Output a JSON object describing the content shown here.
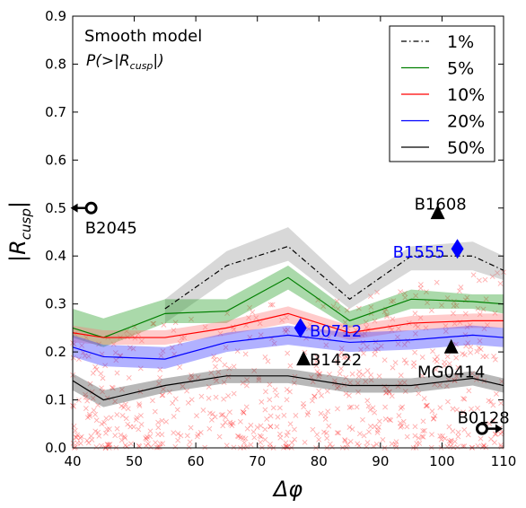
{
  "chart_data": {
    "type": "line",
    "xlabel": "Δφ",
    "ylabel": "|R_cusp|",
    "xlim": [
      40,
      110
    ],
    "ylim": [
      0.0,
      0.9
    ],
    "xticks": [
      "40",
      "50",
      "60",
      "70",
      "80",
      "90",
      "100",
      "110"
    ],
    "yticks": [
      "0.0",
      "0.1",
      "0.2",
      "0.3",
      "0.4",
      "0.5",
      "0.6",
      "0.7",
      "0.8",
      "0.9"
    ],
    "ylabel_main": "|R",
    "ylabel_sub": "cusp",
    "ylabel_end": "|",
    "grid": false,
    "legend_position": "top-right",
    "annotation": {
      "title": "Smooth model",
      "formula_main": "P(>|R",
      "formula_sub": "cusp",
      "formula_end": "|)"
    },
    "x": [
      40,
      45,
      55,
      65,
      75,
      85,
      95,
      105,
      110
    ],
    "series": [
      {
        "name": "1%",
        "color": "#000000",
        "dash": "dashdot",
        "values": [
          null,
          null,
          0.29,
          0.38,
          0.42,
          0.31,
          0.4,
          0.4,
          0.37
        ],
        "band_low": [
          null,
          null,
          0.26,
          0.35,
          0.39,
          0.29,
          0.37,
          0.37,
          0.35
        ],
        "band_high": [
          null,
          null,
          0.31,
          0.41,
          0.46,
          0.34,
          0.42,
          0.43,
          0.4
        ],
        "band_color": "#999999"
      },
      {
        "name": "5%",
        "color": "#007f00",
        "dash": "solid",
        "values": [
          0.25,
          0.23,
          0.28,
          0.285,
          0.355,
          0.265,
          0.31,
          0.305,
          0.3
        ],
        "band_low": [
          0.23,
          0.21,
          0.26,
          0.26,
          0.33,
          0.25,
          0.29,
          0.29,
          0.28
        ],
        "band_high": [
          0.29,
          0.27,
          0.31,
          0.31,
          0.38,
          0.285,
          0.33,
          0.32,
          0.32
        ],
        "band_color": "#1f9a1f"
      },
      {
        "name": "10%",
        "color": "#ff0000",
        "dash": "solid",
        "values": [
          0.24,
          0.23,
          0.23,
          0.25,
          0.28,
          0.24,
          0.26,
          0.265,
          0.265
        ],
        "band_low": [
          0.22,
          0.215,
          0.215,
          0.235,
          0.26,
          0.225,
          0.245,
          0.25,
          0.25
        ],
        "band_high": [
          0.255,
          0.245,
          0.245,
          0.265,
          0.295,
          0.255,
          0.275,
          0.28,
          0.28
        ],
        "band_color": "#ff7777"
      },
      {
        "name": "20%",
        "color": "#0000ff",
        "dash": "solid",
        "values": [
          0.21,
          0.19,
          0.185,
          0.22,
          0.235,
          0.22,
          0.225,
          0.235,
          0.23
        ],
        "band_low": [
          0.19,
          0.17,
          0.165,
          0.2,
          0.215,
          0.2,
          0.205,
          0.215,
          0.21
        ],
        "band_high": [
          0.235,
          0.215,
          0.21,
          0.24,
          0.255,
          0.24,
          0.245,
          0.255,
          0.25
        ],
        "band_color": "#3333ff"
      },
      {
        "name": "50%",
        "color": "#000000",
        "dash": "solid",
        "values": [
          0.14,
          0.1,
          0.13,
          0.15,
          0.15,
          0.13,
          0.13,
          0.145,
          0.13
        ],
        "band_low": [
          0.12,
          0.085,
          0.115,
          0.135,
          0.135,
          0.115,
          0.115,
          0.13,
          0.115
        ],
        "band_high": [
          0.155,
          0.12,
          0.145,
          0.165,
          0.165,
          0.145,
          0.145,
          0.16,
          0.145
        ],
        "band_color": "#444444"
      }
    ],
    "points": [
      {
        "label": "B1608",
        "x": 99.3,
        "y": 0.49,
        "marker": "triangle",
        "color": "#000000",
        "label_x": 95.5,
        "label_y": 0.51
      },
      {
        "label": "B1555",
        "x": 102.5,
        "y": 0.415,
        "marker": "diamond",
        "color": "#0000ff",
        "label_x": 92.0,
        "label_y": 0.41
      },
      {
        "label": "B0712",
        "x": 77.0,
        "y": 0.25,
        "marker": "diamond",
        "color": "#0000ff",
        "label_x": 78.5,
        "label_y": 0.245
      },
      {
        "label": "B1422",
        "x": 77.5,
        "y": 0.185,
        "marker": "triangle",
        "color": "#000000",
        "label_x": 78.5,
        "label_y": 0.185
      },
      {
        "label": "MG0414",
        "x": 101.5,
        "y": 0.21,
        "marker": "triangle",
        "color": "#000000",
        "label_x": 96.0,
        "label_y": 0.16
      },
      {
        "label": "B2045",
        "x": 43.0,
        "y": 0.5,
        "marker": "circle-arrow-left",
        "color": "#000000",
        "label_x": 42.0,
        "label_y": 0.46
      },
      {
        "label": "B0128",
        "x": 106.5,
        "y": 0.04,
        "marker": "circle-arrow-right",
        "color": "#000000",
        "label_x": 102.5,
        "label_y": 0.065
      }
    ],
    "scatter_color": "#ff0000",
    "scatter_marker": "x"
  }
}
